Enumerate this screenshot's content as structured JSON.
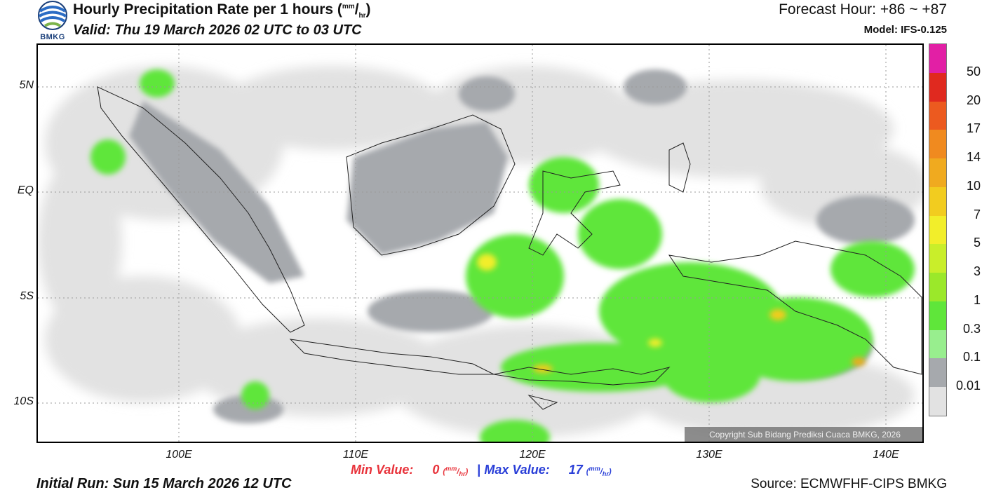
{
  "header": {
    "title": "Hourly Precipitation Rate per 1 hours (",
    "title_unit_num": "mm",
    "title_unit_den": "hr",
    "title_close": ")",
    "valid": "Valid: Thu 19 March 2026 02 UTC to 03 UTC",
    "forecast_hour": "Forecast Hour: +86 ~ +87",
    "model": "Model: IFS-0.125",
    "logo_text": "BMKG"
  },
  "map": {
    "y_ticks": [
      "5N",
      "EQ",
      "5S",
      "10S"
    ],
    "x_ticks": [
      "100E",
      "110E",
      "120E",
      "130E",
      "140E"
    ],
    "copyright": "Copyright Sub Bidang Prediksi Cuaca BMKG, 2026"
  },
  "legend": {
    "labels": [
      "50",
      "20",
      "17",
      "14",
      "10",
      "7",
      "5",
      "3",
      "1",
      "0.3",
      "0.1",
      "0.01"
    ],
    "colors": [
      "#e21fa5",
      "#e0291f",
      "#ec5a1f",
      "#f08a1f",
      "#f0aa1f",
      "#f2cc1f",
      "#f2ee2a",
      "#c9ee2a",
      "#9be82a",
      "#5fe63a",
      "#98ee8e",
      "#a6a9ad",
      "#e2e2e2"
    ]
  },
  "stats": {
    "min_label": "Min Value:",
    "min_value": "0",
    "max_label": "Max Value:",
    "max_value": "17",
    "separator": "|",
    "unit_num": "mm",
    "unit_den": "hr"
  },
  "footer": {
    "initial_run": "Initial Run: Sun 15 March 2026 12 UTC",
    "source": "Source: ECMWFHF-CIPS BMKG"
  }
}
